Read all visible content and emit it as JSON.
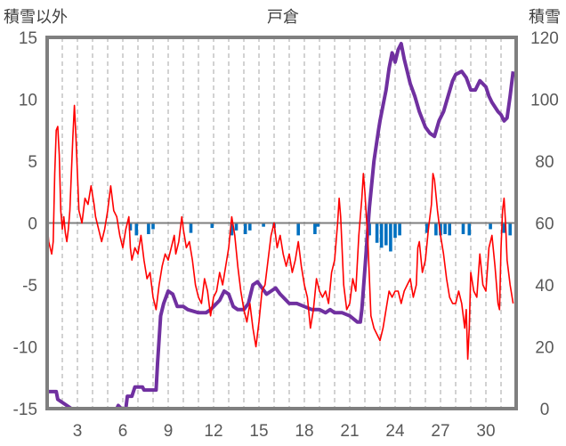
{
  "chart_data": {
    "type": "line",
    "title": "戸倉",
    "left_axis_label": "積雪以外",
    "right_axis_label": "積雪",
    "left_ylim": [
      -15,
      15
    ],
    "left_ticks": [
      "15",
      "10",
      "5",
      "0",
      "-5",
      "-10",
      "-15"
    ],
    "right_ylim": [
      0,
      120
    ],
    "right_ticks": [
      "120",
      "100",
      "80",
      "60",
      "40",
      "20",
      "0"
    ],
    "x_range": [
      1,
      32
    ],
    "x_ticks": [
      "3",
      "6",
      "9",
      "12",
      "15",
      "18",
      "21",
      "24",
      "27",
      "30"
    ],
    "grid": "vertical dashed lines at each day",
    "colors": {
      "temperature": "#ff0000",
      "snow_depth": "#7030a0",
      "precipitation": "#0070c0",
      "frame": "#7f7f7f",
      "zero_line": "#7f7f7f"
    },
    "series": [
      {
        "axis": "left",
        "style": "thin-line",
        "color": "#ff0000",
        "points": [
          [
            1.0,
            0.0
          ],
          [
            1.1,
            -1.5
          ],
          [
            1.3,
            -2.5
          ],
          [
            1.4,
            -1.5
          ],
          [
            1.5,
            4
          ],
          [
            1.6,
            7.5
          ],
          [
            1.7,
            7.8
          ],
          [
            1.8,
            5.5
          ],
          [
            1.9,
            1
          ],
          [
            2.0,
            -0.5
          ],
          [
            2.1,
            0.5
          ],
          [
            2.2,
            -0.8
          ],
          [
            2.3,
            -1.5
          ],
          [
            2.4,
            -0.5
          ],
          [
            2.5,
            1
          ],
          [
            2.6,
            4
          ],
          [
            2.7,
            7
          ],
          [
            2.8,
            9.5
          ],
          [
            2.9,
            7
          ],
          [
            3.0,
            4
          ],
          [
            3.1,
            1
          ],
          [
            3.3,
            0
          ],
          [
            3.5,
            2
          ],
          [
            3.7,
            1.5
          ],
          [
            3.9,
            3
          ],
          [
            4.1,
            1.5
          ],
          [
            4.2,
            0.5
          ],
          [
            4.4,
            -0.5
          ],
          [
            4.6,
            -1.5
          ],
          [
            4.8,
            -0.5
          ],
          [
            5.0,
            1
          ],
          [
            5.2,
            3
          ],
          [
            5.4,
            1
          ],
          [
            5.6,
            0.5
          ],
          [
            5.8,
            -1
          ],
          [
            6.0,
            -2
          ],
          [
            6.2,
            -0.5
          ],
          [
            6.4,
            0.5
          ],
          [
            6.5,
            -2
          ],
          [
            6.6,
            -3
          ],
          [
            6.8,
            -2
          ],
          [
            7.0,
            -2.5
          ],
          [
            7.2,
            -1
          ],
          [
            7.4,
            -3
          ],
          [
            7.6,
            -4.5
          ],
          [
            7.8,
            -4
          ],
          [
            8.0,
            -6
          ],
          [
            8.2,
            -7
          ],
          [
            8.4,
            -5
          ],
          [
            8.6,
            -3.5
          ],
          [
            8.8,
            -2.5
          ],
          [
            9.0,
            -3
          ],
          [
            9.2,
            -2
          ],
          [
            9.4,
            -1
          ],
          [
            9.5,
            -2.5
          ],
          [
            9.7,
            -1.5
          ],
          [
            9.9,
            0.5
          ],
          [
            10.0,
            -0.5
          ],
          [
            10.2,
            -2
          ],
          [
            10.4,
            -1.5
          ],
          [
            10.6,
            -3
          ],
          [
            10.8,
            -5
          ],
          [
            11.0,
            -6
          ],
          [
            11.2,
            -6.5
          ],
          [
            11.4,
            -4.5
          ],
          [
            11.6,
            -5.5
          ],
          [
            11.8,
            -7.5
          ],
          [
            12.0,
            -6
          ],
          [
            12.2,
            -5.5
          ],
          [
            12.4,
            -4
          ],
          [
            12.6,
            -5
          ],
          [
            12.8,
            -3.5
          ],
          [
            13.0,
            -2
          ],
          [
            13.2,
            0.5
          ],
          [
            13.4,
            -1
          ],
          [
            13.6,
            -3.5
          ],
          [
            13.8,
            -5.5
          ],
          [
            14.0,
            -7
          ],
          [
            14.2,
            -8
          ],
          [
            14.4,
            -6.5
          ],
          [
            14.6,
            -8.5
          ],
          [
            14.8,
            -10
          ],
          [
            15.0,
            -8
          ],
          [
            15.2,
            -5.5
          ],
          [
            15.4,
            -5
          ],
          [
            15.6,
            -3
          ],
          [
            15.8,
            -1
          ],
          [
            16.0,
            0
          ],
          [
            16.2,
            -2
          ],
          [
            16.4,
            -1
          ],
          [
            16.6,
            -2.5
          ],
          [
            16.8,
            -3.5
          ],
          [
            17.0,
            -2.5
          ],
          [
            17.2,
            -4
          ],
          [
            17.4,
            -3
          ],
          [
            17.6,
            -1.5
          ],
          [
            17.8,
            -3.5
          ],
          [
            18.0,
            -5
          ],
          [
            18.2,
            -6
          ],
          [
            18.4,
            -8.5
          ],
          [
            18.6,
            -7
          ],
          [
            18.8,
            -4.5
          ],
          [
            19.0,
            -5.5
          ],
          [
            19.2,
            -6
          ],
          [
            19.4,
            -5.5
          ],
          [
            19.6,
            -6.5
          ],
          [
            19.8,
            -4
          ],
          [
            20.0,
            -3
          ],
          [
            20.2,
            0
          ],
          [
            20.3,
            2
          ],
          [
            20.4,
            0.5
          ],
          [
            20.6,
            -5
          ],
          [
            20.8,
            -7
          ],
          [
            21.0,
            -6.5
          ],
          [
            21.2,
            -4.5
          ],
          [
            21.4,
            -5.5
          ],
          [
            21.6,
            -1
          ],
          [
            21.8,
            2
          ],
          [
            21.9,
            4
          ],
          [
            22.0,
            2.5
          ],
          [
            22.1,
            0.5
          ],
          [
            22.2,
            -1.5
          ],
          [
            22.4,
            -7.5
          ],
          [
            22.6,
            -8.5
          ],
          [
            22.8,
            -9
          ],
          [
            23.0,
            -9.5
          ],
          [
            23.2,
            -8.5
          ],
          [
            23.4,
            -7
          ],
          [
            23.6,
            -5.5
          ],
          [
            23.8,
            -6
          ],
          [
            24.0,
            -5.5
          ],
          [
            24.2,
            -5.5
          ],
          [
            24.4,
            -6.5
          ],
          [
            24.6,
            -5.5
          ],
          [
            24.8,
            -5
          ],
          [
            25.0,
            -4.5
          ],
          [
            25.2,
            -6
          ],
          [
            25.4,
            -5
          ],
          [
            25.5,
            -2
          ],
          [
            25.6,
            -1.5
          ],
          [
            25.8,
            -4
          ],
          [
            26.0,
            -3
          ],
          [
            26.2,
            -0.5
          ],
          [
            26.4,
            1.5
          ],
          [
            26.5,
            4
          ],
          [
            26.6,
            3.5
          ],
          [
            26.8,
            1
          ],
          [
            27.0,
            -1
          ],
          [
            27.2,
            -2.5
          ],
          [
            27.4,
            -4.5
          ],
          [
            27.6,
            -6
          ],
          [
            27.8,
            -6.5
          ],
          [
            28.0,
            -6.5
          ],
          [
            28.2,
            -5.5
          ],
          [
            28.4,
            -6.5
          ],
          [
            28.6,
            -8.5
          ],
          [
            28.7,
            -7
          ],
          [
            28.8,
            -11
          ],
          [
            28.9,
            -8.5
          ],
          [
            29.0,
            -4
          ],
          [
            29.2,
            -5.5
          ],
          [
            29.4,
            -6
          ],
          [
            29.6,
            -2.5
          ],
          [
            29.8,
            -5
          ],
          [
            30.0,
            -5.5
          ],
          [
            30.2,
            -2
          ],
          [
            30.4,
            -1
          ],
          [
            30.6,
            -3.5
          ],
          [
            30.8,
            -6.5
          ],
          [
            30.9,
            -7
          ],
          [
            31.0,
            -2
          ],
          [
            31.1,
            1
          ],
          [
            31.2,
            2
          ],
          [
            31.3,
            0
          ],
          [
            31.4,
            -3
          ],
          [
            31.6,
            -5
          ],
          [
            31.8,
            -6.5
          ]
        ]
      },
      {
        "axis": "right",
        "style": "thick-line",
        "color": "#7030a0",
        "points": [
          [
            1.0,
            5.5
          ],
          [
            1.6,
            5.5
          ],
          [
            1.7,
            3
          ],
          [
            2.3,
            1
          ],
          [
            2.6,
            0
          ],
          [
            5.0,
            0
          ],
          [
            5.6,
            0
          ],
          [
            5.7,
            1
          ],
          [
            5.9,
            0
          ],
          [
            6.2,
            0
          ],
          [
            6.3,
            4
          ],
          [
            6.6,
            4
          ],
          [
            6.8,
            7
          ],
          [
            7.3,
            7
          ],
          [
            7.4,
            6
          ],
          [
            8.2,
            6
          ],
          [
            8.3,
            15
          ],
          [
            8.5,
            30
          ],
          [
            8.7,
            34
          ],
          [
            9.0,
            38
          ],
          [
            9.3,
            37
          ],
          [
            9.6,
            33
          ],
          [
            10.0,
            33
          ],
          [
            10.3,
            32
          ],
          [
            11.0,
            31
          ],
          [
            11.5,
            31
          ],
          [
            11.8,
            32
          ],
          [
            12.0,
            33
          ],
          [
            12.4,
            35
          ],
          [
            12.7,
            38
          ],
          [
            13.0,
            37
          ],
          [
            13.3,
            33
          ],
          [
            13.6,
            32
          ],
          [
            14.0,
            32
          ],
          [
            14.3,
            34
          ],
          [
            14.6,
            40
          ],
          [
            14.9,
            41
          ],
          [
            15.2,
            39
          ],
          [
            15.5,
            37
          ],
          [
            15.8,
            38
          ],
          [
            16.1,
            39
          ],
          [
            16.4,
            37
          ],
          [
            16.8,
            35
          ],
          [
            17.0,
            34
          ],
          [
            17.5,
            34
          ],
          [
            18.0,
            33
          ],
          [
            18.5,
            32
          ],
          [
            19.0,
            32
          ],
          [
            19.4,
            31
          ],
          [
            19.7,
            32
          ],
          [
            20.0,
            31
          ],
          [
            20.5,
            31
          ],
          [
            21.0,
            30
          ],
          [
            21.5,
            28
          ],
          [
            21.7,
            28
          ],
          [
            21.8,
            32
          ],
          [
            22.0,
            45
          ],
          [
            22.3,
            65
          ],
          [
            22.6,
            80
          ],
          [
            22.9,
            90
          ],
          [
            23.0,
            93
          ],
          [
            23.2,
            98
          ],
          [
            23.4,
            103
          ],
          [
            23.6,
            110
          ],
          [
            23.8,
            115
          ],
          [
            24.0,
            112
          ],
          [
            24.2,
            116
          ],
          [
            24.4,
            118
          ],
          [
            24.6,
            113
          ],
          [
            24.8,
            109
          ],
          [
            25.0,
            105
          ],
          [
            25.3,
            101
          ],
          [
            25.6,
            96
          ],
          [
            26.0,
            91
          ],
          [
            26.3,
            89
          ],
          [
            26.6,
            88
          ],
          [
            26.9,
            93
          ],
          [
            27.2,
            96
          ],
          [
            27.5,
            101
          ],
          [
            27.8,
            106
          ],
          [
            28.0,
            108
          ],
          [
            28.4,
            109
          ],
          [
            28.7,
            107
          ],
          [
            29.0,
            103
          ],
          [
            29.3,
            103
          ],
          [
            29.6,
            106
          ],
          [
            30.0,
            104
          ],
          [
            30.2,
            101
          ],
          [
            30.4,
            99
          ],
          [
            30.8,
            96
          ],
          [
            31.0,
            95
          ],
          [
            31.2,
            93
          ],
          [
            31.4,
            94
          ],
          [
            31.6,
            101
          ],
          [
            31.8,
            109
          ]
        ]
      },
      {
        "axis": "left",
        "style": "bars",
        "color": "#0070c0",
        "points": [
          [
            6.5,
            -0.6
          ],
          [
            6.9,
            -1
          ],
          [
            7.7,
            -0.9
          ],
          [
            8.0,
            -0.5
          ],
          [
            10.5,
            -0.8
          ],
          [
            11.9,
            -0.4
          ],
          [
            13.2,
            -1
          ],
          [
            13.5,
            -0.6
          ],
          [
            14.1,
            -0.9
          ],
          [
            14.4,
            -0.6
          ],
          [
            15.3,
            -0.3
          ],
          [
            16.0,
            -0.4
          ],
          [
            17.6,
            -1
          ],
          [
            18.7,
            -0.9
          ],
          [
            18.9,
            -0.3
          ],
          [
            22.3,
            -1
          ],
          [
            22.8,
            -1.6
          ],
          [
            23.1,
            -2
          ],
          [
            23.4,
            -1.8
          ],
          [
            23.7,
            -2.3
          ],
          [
            24.0,
            -1.2
          ],
          [
            24.3,
            -1
          ],
          [
            26.1,
            -0.8
          ],
          [
            26.7,
            -1
          ],
          [
            27.0,
            -1
          ],
          [
            27.3,
            -0.9
          ],
          [
            27.6,
            -1
          ],
          [
            28.5,
            -0.9
          ],
          [
            28.9,
            -1
          ],
          [
            30.3,
            -0.5
          ],
          [
            31.2,
            -0.8
          ],
          [
            31.6,
            -1
          ]
        ]
      }
    ]
  }
}
